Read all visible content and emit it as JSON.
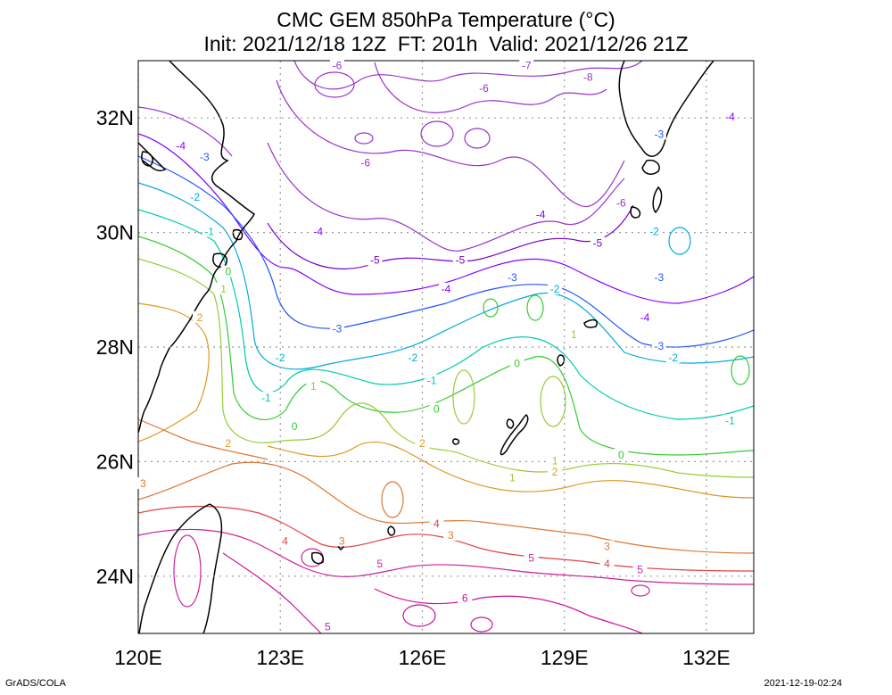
{
  "title": {
    "line1": "CMC GEM 850hPa Temperature (°C)",
    "line2": "Init: 2021/12/18 12Z  FT: 201h  Valid: 2021/12/26 21Z"
  },
  "footer": {
    "left": "GrADS/COLA",
    "right": "2021-12-19-02:24"
  },
  "map": {
    "lon_range": [
      120,
      133
    ],
    "lat_range": [
      23,
      33
    ],
    "x_ticks": [
      "120E",
      "123E",
      "126E",
      "129E",
      "132E"
    ],
    "y_ticks": [
      "32N",
      "30N",
      "28N",
      "26N",
      "24N"
    ],
    "grid": true,
    "contour_labels": [
      {
        "text": "-6",
        "color": "#9933cc",
        "lon": 124.2,
        "lat": 32.9
      },
      {
        "text": "-7",
        "color": "#9933cc",
        "lon": 128.2,
        "lat": 32.9
      },
      {
        "text": "-8",
        "color": "#9933cc",
        "lon": 129.5,
        "lat": 32.7
      },
      {
        "text": "-6",
        "color": "#9933cc",
        "lon": 127.3,
        "lat": 32.5
      },
      {
        "text": "-4",
        "color": "#8800ff",
        "lon": 132.5,
        "lat": 32.0
      },
      {
        "text": "-4",
        "color": "#8800ff",
        "lon": 120.9,
        "lat": 31.5
      },
      {
        "text": "-3",
        "color": "#2255ff",
        "lon": 121.4,
        "lat": 31.3
      },
      {
        "text": "-3",
        "color": "#2255ff",
        "lon": 131.0,
        "lat": 31.7
      },
      {
        "text": "-6",
        "color": "#9933cc",
        "lon": 124.8,
        "lat": 31.2
      },
      {
        "text": "-6",
        "color": "#9933cc",
        "lon": 130.2,
        "lat": 30.5
      },
      {
        "text": "-2",
        "color": "#00aadd",
        "lon": 121.2,
        "lat": 30.6
      },
      {
        "text": "-4",
        "color": "#8800ff",
        "lon": 128.5,
        "lat": 30.3
      },
      {
        "text": "-2",
        "color": "#00aadd",
        "lon": 130.9,
        "lat": 30.0
      },
      {
        "text": "-1",
        "color": "#00ccaa",
        "lon": 121.5,
        "lat": 30.0
      },
      {
        "text": "-4",
        "color": "#8800ff",
        "lon": 123.8,
        "lat": 30.0
      },
      {
        "text": "-5",
        "color": "#7700cc",
        "lon": 129.7,
        "lat": 29.8
      },
      {
        "text": "-5",
        "color": "#7700cc",
        "lon": 125.0,
        "lat": 29.5
      },
      {
        "text": "-5",
        "color": "#7700cc",
        "lon": 126.8,
        "lat": 29.5
      },
      {
        "text": "0",
        "color": "#33cc33",
        "lon": 121.9,
        "lat": 29.3
      },
      {
        "text": "1",
        "color": "#99cc33",
        "lon": 121.8,
        "lat": 29.0
      },
      {
        "text": "-3",
        "color": "#2255ff",
        "lon": 131.0,
        "lat": 29.2
      },
      {
        "text": "-3",
        "color": "#2255ff",
        "lon": 127.9,
        "lat": 29.2
      },
      {
        "text": "-4",
        "color": "#8800ff",
        "lon": 126.5,
        "lat": 29.0
      },
      {
        "text": "-2",
        "color": "#00aadd",
        "lon": 128.8,
        "lat": 29.0
      },
      {
        "text": "-4",
        "color": "#8800ff",
        "lon": 130.7,
        "lat": 28.5
      },
      {
        "text": "2",
        "color": "#dd9922",
        "lon": 121.3,
        "lat": 28.5
      },
      {
        "text": "-3",
        "color": "#2255ff",
        "lon": 124.2,
        "lat": 28.3
      },
      {
        "text": "1",
        "color": "#99cc33",
        "lon": 129.2,
        "lat": 28.2
      },
      {
        "text": "-3",
        "color": "#2255ff",
        "lon": 131.0,
        "lat": 28.0
      },
      {
        "text": "-2",
        "color": "#00aadd",
        "lon": 125.8,
        "lat": 27.8
      },
      {
        "text": "-2",
        "color": "#00aadd",
        "lon": 131.3,
        "lat": 27.8
      },
      {
        "text": "-2",
        "color": "#00aadd",
        "lon": 123.0,
        "lat": 27.8
      },
      {
        "text": "0",
        "color": "#33cc33",
        "lon": 128.0,
        "lat": 27.7
      },
      {
        "text": "-1",
        "color": "#00ccaa",
        "lon": 126.2,
        "lat": 27.4
      },
      {
        "text": "1",
        "color": "#99cc33",
        "lon": 123.7,
        "lat": 27.3
      },
      {
        "text": "-1",
        "color": "#00ccaa",
        "lon": 122.7,
        "lat": 27.1
      },
      {
        "text": "0",
        "color": "#33cc33",
        "lon": 126.3,
        "lat": 26.9
      },
      {
        "text": "-1",
        "color": "#00ccaa",
        "lon": 132.5,
        "lat": 26.7
      },
      {
        "text": "0",
        "color": "#33cc33",
        "lon": 123.3,
        "lat": 26.6
      },
      {
        "text": "2",
        "color": "#dd9922",
        "lon": 121.9,
        "lat": 26.3
      },
      {
        "text": "2",
        "color": "#dd9922",
        "lon": 126.0,
        "lat": 26.3
      },
      {
        "text": "0",
        "color": "#33cc33",
        "lon": 130.2,
        "lat": 26.1
      },
      {
        "text": "1",
        "color": "#99cc33",
        "lon": 128.8,
        "lat": 26.0
      },
      {
        "text": "2",
        "color": "#dd9922",
        "lon": 128.8,
        "lat": 25.8
      },
      {
        "text": "1",
        "color": "#99cc33",
        "lon": 127.9,
        "lat": 25.7
      },
      {
        "text": "3",
        "color": "#dd7733",
        "lon": 120.1,
        "lat": 25.6
      },
      {
        "text": "4",
        "color": "#dd4444",
        "lon": 126.3,
        "lat": 24.9
      },
      {
        "text": "3",
        "color": "#dd7733",
        "lon": 126.6,
        "lat": 24.7
      },
      {
        "text": "3",
        "color": "#dd7733",
        "lon": 124.3,
        "lat": 24.6
      },
      {
        "text": "4",
        "color": "#dd4444",
        "lon": 123.1,
        "lat": 24.6
      },
      {
        "text": "3",
        "color": "#dd7733",
        "lon": 129.9,
        "lat": 24.5
      },
      {
        "text": "5",
        "color": "#cc2299",
        "lon": 128.3,
        "lat": 24.3
      },
      {
        "text": "4",
        "color": "#dd4444",
        "lon": 129.9,
        "lat": 24.2
      },
      {
        "text": "5",
        "color": "#cc2299",
        "lon": 125.1,
        "lat": 24.2
      },
      {
        "text": "5",
        "color": "#cc2299",
        "lon": 130.6,
        "lat": 24.1
      },
      {
        "text": "6",
        "color": "#cc1199",
        "lon": 126.9,
        "lat": 23.6
      },
      {
        "text": "5",
        "color": "#cc2299",
        "lon": 124.0,
        "lat": 23.1
      }
    ]
  }
}
